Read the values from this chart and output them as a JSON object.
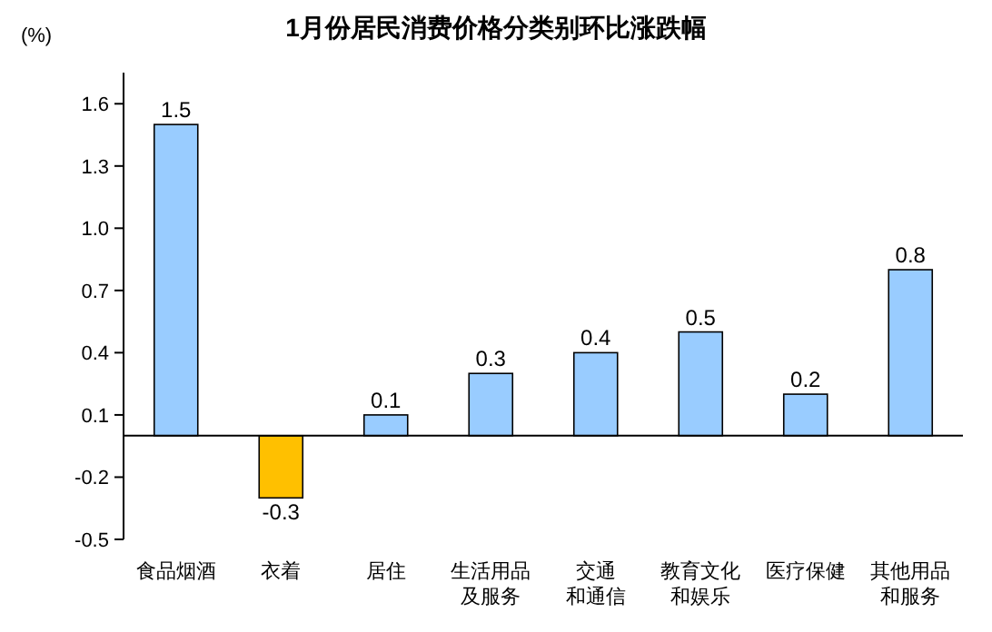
{
  "chart_data": {
    "type": "bar",
    "title": "1月份居民消费价格分类别环比涨跌幅",
    "ylabel": "(%)",
    "categories": [
      "食品烟酒",
      "衣着",
      "居住",
      "生活用品及服务",
      "交通和通信",
      "教育文化和娱乐",
      "医疗保健",
      "其他用品和服务"
    ],
    "values": [
      1.5,
      -0.3,
      0.1,
      0.3,
      0.4,
      0.5,
      0.2,
      0.8
    ],
    "colors": [
      "#99ccff",
      "#ffc000",
      "#99ccff",
      "#99ccff",
      "#99ccff",
      "#99ccff",
      "#99ccff",
      "#99ccff"
    ],
    "ylim": [
      -0.5,
      1.75
    ],
    "yticks": [
      -0.5,
      -0.2,
      0.1,
      0.4,
      0.7,
      {
        "value": 1,
        "label": "1.0"
      },
      1.3,
      1.6
    ],
    "data_labels": true,
    "grid": false
  }
}
